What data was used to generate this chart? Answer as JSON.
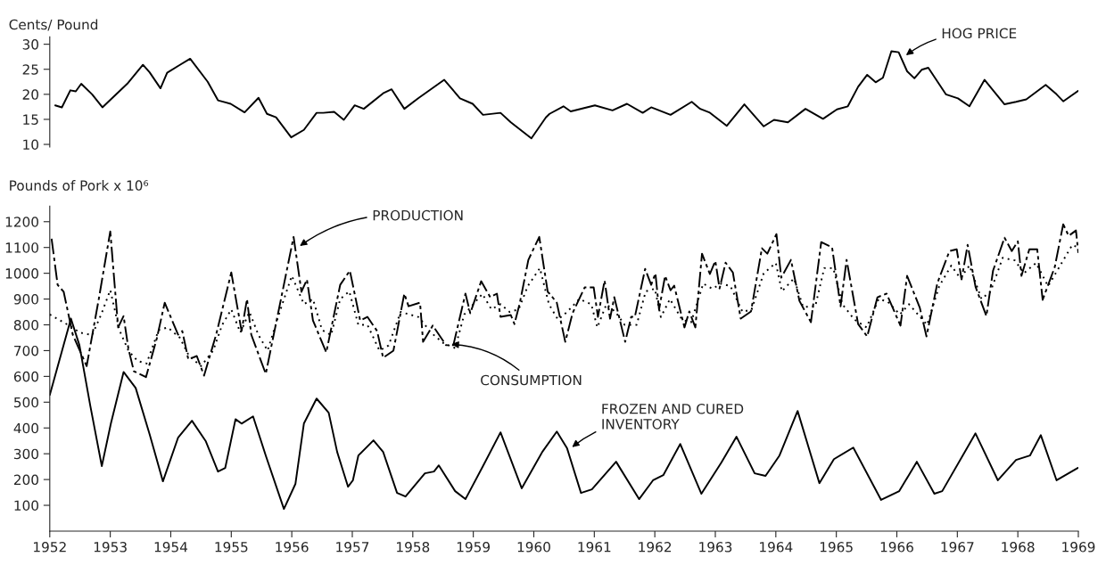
{
  "chart_data": [
    {
      "type": "line",
      "ylabel": "Cents/ Pound",
      "xlim": [
        1952,
        1969
      ],
      "xticks": [
        1952,
        1953,
        1954,
        1955,
        1956,
        1957,
        1958,
        1959,
        1960,
        1961,
        1962,
        1963,
        1964,
        1965,
        1966,
        1967,
        1968,
        1969
      ],
      "ylim": [
        9.5,
        31.5
      ],
      "yticks": [
        10,
        15,
        20,
        25,
        30
      ],
      "tick_labels": "y",
      "line_style": "solid",
      "series": [
        {
          "color": "#000000",
          "x": [
            1952.09,
            1952.2,
            1952.34,
            1952.43,
            1952.52,
            1952.7,
            1952.87,
            1953.28,
            1953.54,
            1953.65,
            1953.83,
            1953.94,
            1954.14,
            1954.32,
            1954.61,
            1954.78,
            1954.99,
            1955.22,
            1955.45,
            1955.59,
            1955.74,
            1955.99,
            1956.2,
            1956.41,
            1956.52,
            1956.7,
            1956.86,
            1957.04,
            1957.19,
            1957.51,
            1957.65,
            1957.86,
            1958.09,
            1958.52,
            1958.78,
            1958.99,
            1959.16,
            1959.45,
            1959.62,
            1959.96,
            1960.2,
            1960.26,
            1960.49,
            1960.61,
            1961.01,
            1961.3,
            1961.54,
            1961.8,
            1961.94,
            1962.26,
            1962.61,
            1962.75,
            1962.9,
            1963.19,
            1963.48,
            1963.8,
            1963.97,
            1964.2,
            1964.49,
            1964.78,
            1965.01,
            1965.19,
            1965.36,
            1965.51,
            1965.65,
            1965.77,
            1965.91,
            1966.03,
            1966.17,
            1966.29,
            1966.41,
            1966.52,
            1966.81,
            1967.01,
            1967.2,
            1967.45,
            1967.78,
            1967.97,
            1968.14,
            1968.46,
            1968.64,
            1968.75,
            1969.0
          ],
          "values": [
            17.8,
            17.4,
            20.8,
            20.6,
            22.1,
            20.0,
            17.4,
            22.1,
            25.9,
            24.4,
            21.2,
            24.3,
            25.8,
            27.1,
            22.5,
            18.8,
            18.1,
            16.4,
            19.3,
            16.1,
            15.4,
            11.4,
            12.9,
            16.3,
            16.3,
            16.5,
            14.9,
            17.8,
            17.1,
            20.2,
            21.0,
            17.1,
            19.2,
            22.9,
            19.2,
            18.1,
            15.9,
            16.3,
            14.4,
            11.2,
            15.4,
            16.1,
            17.6,
            16.6,
            17.8,
            16.8,
            18.1,
            16.3,
            17.4,
            15.9,
            18.5,
            17.1,
            16.4,
            13.7,
            18.0,
            13.6,
            14.9,
            14.4,
            17.1,
            15.1,
            17.0,
            17.6,
            21.5,
            23.9,
            22.4,
            23.3,
            28.6,
            28.4,
            24.6,
            23.2,
            24.9,
            25.3,
            20.0,
            19.2,
            17.6,
            22.9,
            18.0,
            18.5,
            19.0,
            21.9,
            20.0,
            18.6,
            20.7
          ]
        }
      ],
      "annotations": [
        {
          "text": "HOG PRICE",
          "x": 1966.12,
          "y": 27.5
        }
      ]
    },
    {
      "type": "line",
      "ylabel": "Pounds of Pork x 10⁶",
      "xlim": [
        1952,
        1969
      ],
      "xticks": [
        1952,
        1953,
        1954,
        1955,
        1956,
        1957,
        1958,
        1959,
        1960,
        1961,
        1962,
        1963,
        1964,
        1965,
        1966,
        1967,
        1968,
        1969
      ],
      "ylim": [
        0,
        1260
      ],
      "yticks": [
        100,
        200,
        300,
        400,
        500,
        600,
        700,
        800,
        900,
        1000,
        1100,
        1200
      ],
      "series": [
        {
          "color": "#000000",
          "line_style": "dashed",
          "x": [
            1952.03,
            1952.13,
            1952.23,
            1952.38,
            1952.61,
            1952.81,
            1953.0,
            1953.13,
            1953.22,
            1953.3,
            1953.39,
            1953.59,
            1953.77,
            1953.9,
            1954.12,
            1954.19,
            1954.29,
            1954.43,
            1954.55,
            1954.75,
            1955.0,
            1955.17,
            1955.26,
            1955.33,
            1955.57,
            1956.03,
            1956.16,
            1956.25,
            1956.35,
            1956.57,
            1956.8,
            1956.96,
            1957.13,
            1957.25,
            1957.41,
            1957.51,
            1957.68,
            1957.86,
            1957.93,
            1958.12,
            1958.17,
            1958.33,
            1958.55,
            1958.67,
            1958.87,
            1958.95,
            1959.13,
            1959.28,
            1959.39,
            1959.45,
            1959.62,
            1959.68,
            1959.77,
            1959.91,
            1960.09,
            1960.23,
            1960.26,
            1960.38,
            1960.52,
            1960.64,
            1960.84,
            1960.99,
            1961.06,
            1961.17,
            1961.26,
            1961.33,
            1961.51,
            1961.61,
            1961.67,
            1961.84,
            1961.94,
            1962.01,
            1962.07,
            1962.17,
            1962.26,
            1962.32,
            1962.49,
            1962.57,
            1962.67,
            1962.78,
            1962.91,
            1963.0,
            1963.07,
            1963.17,
            1963.29,
            1963.42,
            1963.59,
            1963.77,
            1963.86,
            1964.01,
            1964.09,
            1964.25,
            1964.39,
            1964.58,
            1964.75,
            1964.93,
            1965.07,
            1965.17,
            1965.36,
            1965.51,
            1965.68,
            1965.83,
            1966.06,
            1966.17,
            1966.38,
            1966.49,
            1966.67,
            1966.87,
            1966.99,
            1967.07,
            1967.17,
            1967.3,
            1967.48,
            1967.59,
            1967.78,
            1967.9,
            1968.0,
            1968.06,
            1968.19,
            1968.32,
            1968.41,
            1968.61,
            1968.75,
            1968.84,
            1968.96,
            1969.0
          ],
          "values": [
            1134,
            955,
            928,
            762,
            640,
            900,
            1162,
            790,
            834,
            707,
            620,
            597,
            748,
            886,
            762,
            776,
            666,
            679,
            603,
            762,
            1003,
            776,
            900,
            762,
            610,
            1141,
            928,
            976,
            817,
            693,
            955,
            1010,
            817,
            831,
            776,
            672,
            700,
            921,
            872,
            886,
            734,
            797,
            721,
            721,
            921,
            845,
            969,
            907,
            921,
            831,
            838,
            803,
            886,
            1052,
            1141,
            928,
            921,
            886,
            734,
            845,
            945,
            945,
            831,
            972,
            824,
            907,
            734,
            831,
            831,
            1017,
            955,
            1000,
            859,
            990,
            934,
            952,
            790,
            852,
            790,
            1076,
            997,
            1048,
            941,
            1041,
            1003,
            824,
            852,
            1097,
            1076,
            1152,
            983,
            1052,
            893,
            810,
            1121,
            1100,
            872,
            1052,
            803,
            755,
            907,
            921,
            797,
            990,
            866,
            755,
            962,
            1086,
            1093,
            976,
            1110,
            948,
            834,
            1010,
            1138,
            1086,
            1124,
            990,
            1093,
            1093,
            897,
            1024,
            1190,
            1145,
            1166,
            1079
          ]
        },
        {
          "color": "#000000",
          "line_style": "dotted",
          "x": [
            1952.0,
            1952.15,
            1952.3,
            1952.5,
            1952.7,
            1952.85,
            1953.0,
            1953.15,
            1953.3,
            1953.45,
            1953.6,
            1953.8,
            1953.95,
            1954.15,
            1954.3,
            1954.5,
            1954.7,
            1954.85,
            1955.0,
            1955.15,
            1955.3,
            1955.45,
            1955.6,
            1955.8,
            1956.0,
            1956.2,
            1956.35,
            1956.5,
            1956.65,
            1956.8,
            1956.95,
            1957.1,
            1957.25,
            1957.45,
            1957.6,
            1957.8,
            1957.95,
            1958.1,
            1958.3,
            1958.5,
            1958.7,
            1958.85,
            1959.0,
            1959.15,
            1959.3,
            1959.45,
            1959.6,
            1959.75,
            1959.9,
            1960.1,
            1960.25,
            1960.4,
            1960.55,
            1960.75,
            1960.95,
            1961.05,
            1961.2,
            1961.35,
            1961.5,
            1961.7,
            1961.85,
            1962.0,
            1962.1,
            1962.25,
            1962.45,
            1962.6,
            1962.8,
            1962.95,
            1963.1,
            1963.25,
            1963.45,
            1963.6,
            1963.8,
            1964.0,
            1964.1,
            1964.3,
            1964.45,
            1964.65,
            1964.8,
            1964.95,
            1965.1,
            1965.3,
            1965.5,
            1965.7,
            1965.85,
            1966.05,
            1966.2,
            1966.35,
            1966.5,
            1966.7,
            1966.9,
            1967.05,
            1967.2,
            1967.4,
            1967.55,
            1967.75,
            1967.95,
            1968.1,
            1968.3,
            1968.5,
            1968.7,
            1968.9,
            1969.0
          ],
          "values": [
            840,
            820,
            800,
            770,
            760,
            840,
            935,
            780,
            700,
            660,
            650,
            780,
            790,
            750,
            680,
            640,
            700,
            800,
            860,
            770,
            850,
            760,
            700,
            850,
            990,
            880,
            900,
            780,
            760,
            900,
            930,
            800,
            800,
            700,
            720,
            850,
            840,
            830,
            770,
            730,
            710,
            840,
            880,
            920,
            860,
            880,
            850,
            860,
            950,
            1020,
            880,
            820,
            850,
            900,
            880,
            790,
            880,
            850,
            800,
            800,
            930,
            940,
            830,
            900,
            820,
            810,
            960,
            940,
            960,
            950,
            850,
            860,
            1000,
            1040,
            930,
            980,
            870,
            870,
            1020,
            1020,
            880,
            820,
            790,
            900,
            890,
            840,
            880,
            840,
            800,
            950,
            1030,
            980,
            1030,
            900,
            930,
            1060,
            1050,
            1000,
            1040,
            950,
            1030,
            1110,
            1100
          ]
        },
        {
          "color": "#000000",
          "line_style": "solid",
          "x": [
            1952.0,
            1952.35,
            1952.49,
            1952.67,
            1952.86,
            1953.01,
            1953.22,
            1953.42,
            1953.65,
            1953.87,
            1954.12,
            1954.35,
            1954.58,
            1954.78,
            1954.9,
            1955.07,
            1955.17,
            1955.36,
            1955.57,
            1955.87,
            1956.06,
            1956.2,
            1956.41,
            1956.61,
            1956.75,
            1956.93,
            1957.01,
            1957.1,
            1957.35,
            1957.51,
            1957.74,
            1957.88,
            1958.2,
            1958.35,
            1958.43,
            1958.7,
            1958.87,
            1959.16,
            1959.45,
            1959.8,
            1960.14,
            1960.38,
            1960.55,
            1960.78,
            1960.96,
            1961.36,
            1961.74,
            1961.97,
            1962.14,
            1962.42,
            1962.77,
            1963.1,
            1963.35,
            1963.65,
            1963.83,
            1964.06,
            1964.36,
            1964.72,
            1964.96,
            1965.28,
            1965.74,
            1966.04,
            1966.33,
            1966.62,
            1966.75,
            1967.3,
            1967.67,
            1967.97,
            1968.2,
            1968.38,
            1968.64,
            1968.99
          ],
          "values": [
            528,
            824,
            721,
            486,
            252,
            417,
            617,
            555,
            376,
            193,
            362,
            428,
            348,
            231,
            245,
            434,
            417,
            445,
            293,
            86,
            183,
            417,
            514,
            459,
            307,
            172,
            197,
            293,
            352,
            307,
            148,
            134,
            224,
            231,
            255,
            155,
            124,
            252,
            383,
            166,
            307,
            386,
            321,
            148,
            162,
            269,
            124,
            197,
            217,
            338,
            145,
            266,
            366,
            224,
            214,
            293,
            466,
            186,
            279,
            324,
            121,
            155,
            269,
            145,
            155,
            379,
            197,
            276,
            293,
            372,
            197,
            245
          ]
        }
      ],
      "annotations": [
        {
          "text": "PRODUCTION",
          "x": 1956.1,
          "y": 1100
        },
        {
          "text": "CONSUMPTION",
          "x": 1958.6,
          "y": 725
        },
        {
          "text": "FROZEN AND CURED\nINVENTORY",
          "x": 1960.6,
          "y": 320
        }
      ]
    }
  ]
}
